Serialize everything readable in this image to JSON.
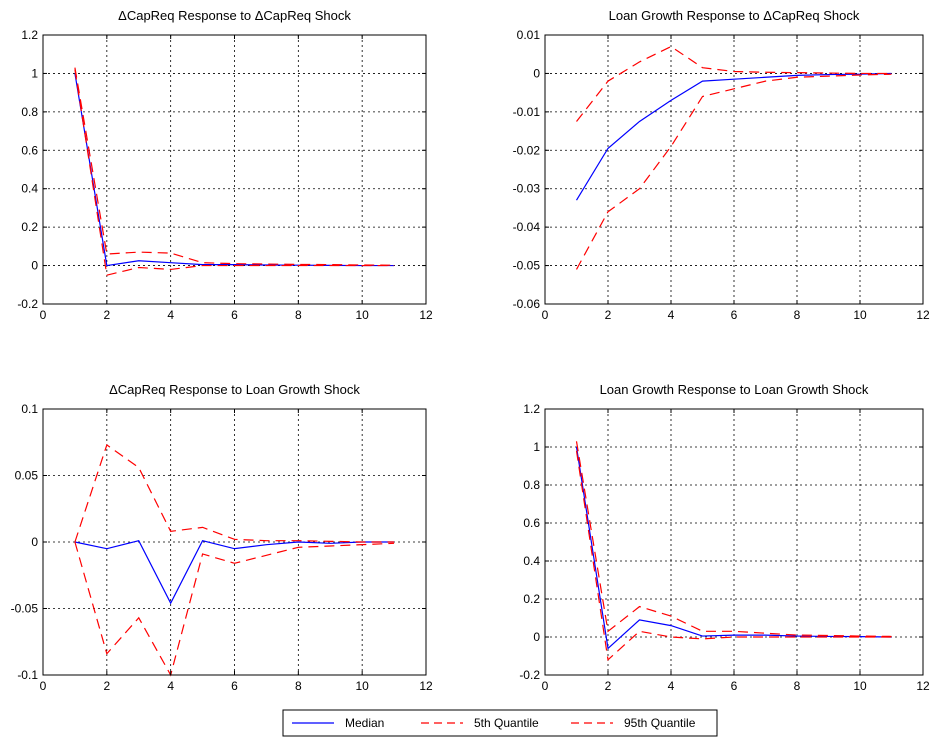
{
  "legend": {
    "items": [
      {
        "label": "Median",
        "color": "#0000ff",
        "dash": "solid"
      },
      {
        "label": "5th Quantile",
        "color": "#ff0000",
        "dash": "dashed"
      },
      {
        "label": "95th Quantile",
        "color": "#ff0000",
        "dash": "dashed"
      }
    ]
  },
  "chart_data": [
    {
      "type": "line",
      "title": "ΔCapReq Response to ΔCapReq Shock",
      "xlim": [
        0,
        12
      ],
      "ylim": [
        -0.2,
        1.2
      ],
      "xticks": [
        0,
        2,
        4,
        6,
        8,
        10,
        12
      ],
      "yticks": [
        -0.2,
        0,
        0.2,
        0.4,
        0.6,
        0.8,
        1,
        1.2
      ],
      "ytick_labels": [
        "-0.2",
        "0",
        "0.2",
        "0.4",
        "0.6",
        "0.8",
        "1",
        "1.2"
      ],
      "grid": true,
      "x": [
        1,
        2,
        3,
        4,
        5,
        6,
        7,
        8,
        9,
        10,
        11
      ],
      "series": [
        {
          "name": "Median",
          "color": "#0000ff",
          "dash": "solid",
          "values": [
            1.0,
            0.0,
            0.025,
            0.015,
            0.005,
            0.005,
            0.003,
            0.002,
            0.001,
            0.0,
            0.0
          ]
        },
        {
          "name": "5th Quantile",
          "color": "#ff0000",
          "dash": "dashed",
          "values": [
            1.02,
            -0.05,
            -0.01,
            -0.02,
            0.0,
            0.0,
            0.0,
            0.0,
            0.0,
            0.0,
            0.0
          ]
        },
        {
          "name": "95th Quantile",
          "color": "#ff0000",
          "dash": "dashed",
          "values": [
            1.03,
            0.06,
            0.07,
            0.065,
            0.015,
            0.01,
            0.008,
            0.006,
            0.005,
            0.003,
            0.002
          ]
        }
      ]
    },
    {
      "type": "line",
      "title": "Loan Growth Response to ΔCapReq Shock",
      "xlim": [
        0,
        12
      ],
      "ylim": [
        -0.06,
        0.01
      ],
      "xticks": [
        0,
        2,
        4,
        6,
        8,
        10,
        12
      ],
      "yticks": [
        -0.06,
        -0.05,
        -0.04,
        -0.03,
        -0.02,
        -0.01,
        0,
        0.01
      ],
      "ytick_labels": [
        "-0.06",
        "-0.05",
        "-0.04",
        "-0.03",
        "-0.02",
        "-0.01",
        "0",
        "0.01"
      ],
      "grid": true,
      "x": [
        1,
        2,
        3,
        4,
        5,
        6,
        7,
        8,
        9,
        10,
        11
      ],
      "series": [
        {
          "name": "Median",
          "color": "#0000ff",
          "dash": "solid",
          "values": [
            -0.033,
            -0.0195,
            -0.0125,
            -0.007,
            -0.002,
            -0.0015,
            -0.001,
            -0.0005,
            -0.0003,
            -0.0002,
            0.0
          ]
        },
        {
          "name": "5th Quantile",
          "color": "#ff0000",
          "dash": "dashed",
          "values": [
            -0.051,
            -0.036,
            -0.03,
            -0.019,
            -0.006,
            -0.004,
            -0.002,
            -0.001,
            -0.0007,
            -0.0004,
            -0.0002
          ]
        },
        {
          "name": "95th Quantile",
          "color": "#ff0000",
          "dash": "dashed",
          "values": [
            -0.0125,
            -0.002,
            0.003,
            0.007,
            0.0015,
            0.0005,
            0.0003,
            0.0002,
            0.0001,
            0.0,
            0.0
          ]
        }
      ]
    },
    {
      "type": "line",
      "title": "ΔCapReq Response to Loan Growth Shock",
      "xlim": [
        0,
        12
      ],
      "ylim": [
        -0.1,
        0.1
      ],
      "xticks": [
        0,
        2,
        4,
        6,
        8,
        10,
        12
      ],
      "yticks": [
        -0.1,
        -0.05,
        0,
        0.05,
        0.1
      ],
      "ytick_labels": [
        "-0.1",
        "-0.05",
        "0",
        "0.05",
        "0.1"
      ],
      "grid": true,
      "x": [
        1,
        2,
        3,
        4,
        5,
        6,
        7,
        8,
        9,
        10,
        11
      ],
      "series": [
        {
          "name": "Median",
          "color": "#0000ff",
          "dash": "solid",
          "values": [
            0.0,
            -0.005,
            0.001,
            -0.046,
            0.001,
            -0.005,
            -0.002,
            0.0,
            -0.001,
            0.0,
            0.0
          ]
        },
        {
          "name": "5th Quantile",
          "color": "#ff0000",
          "dash": "dashed",
          "values": [
            0.0,
            -0.084,
            -0.057,
            -0.1,
            -0.009,
            -0.016,
            -0.01,
            -0.004,
            -0.003,
            -0.002,
            -0.001
          ]
        },
        {
          "name": "95th Quantile",
          "color": "#ff0000",
          "dash": "dashed",
          "values": [
            0.0,
            0.073,
            0.056,
            0.008,
            0.011,
            0.002,
            0.001,
            0.001,
            0.0005,
            0.0,
            0.0
          ]
        }
      ]
    },
    {
      "type": "line",
      "title": "Loan Growth Response to Loan Growth Shock",
      "xlim": [
        0,
        12
      ],
      "ylim": [
        -0.2,
        1.2
      ],
      "xticks": [
        0,
        2,
        4,
        6,
        8,
        10,
        12
      ],
      "yticks": [
        -0.2,
        0,
        0.2,
        0.4,
        0.6,
        0.8,
        1,
        1.2
      ],
      "ytick_labels": [
        "-0.2",
        "0",
        "0.2",
        "0.4",
        "0.6",
        "0.8",
        "1",
        "1.2"
      ],
      "grid": true,
      "x": [
        1,
        2,
        3,
        4,
        5,
        6,
        7,
        8,
        9,
        10,
        11
      ],
      "series": [
        {
          "name": "Median",
          "color": "#0000ff",
          "dash": "solid",
          "values": [
            1.0,
            -0.06,
            0.09,
            0.06,
            0.005,
            0.01,
            0.01,
            0.005,
            0.003,
            0.002,
            0.0
          ]
        },
        {
          "name": "5th Quantile",
          "color": "#ff0000",
          "dash": "dashed",
          "values": [
            0.98,
            -0.12,
            0.03,
            0.0,
            -0.01,
            0.0,
            0.0,
            0.0,
            0.0,
            0.0,
            0.0
          ]
        },
        {
          "name": "95th Quantile",
          "color": "#ff0000",
          "dash": "dashed",
          "values": [
            1.03,
            0.03,
            0.16,
            0.11,
            0.03,
            0.03,
            0.02,
            0.01,
            0.008,
            0.005,
            0.003
          ]
        }
      ]
    }
  ]
}
